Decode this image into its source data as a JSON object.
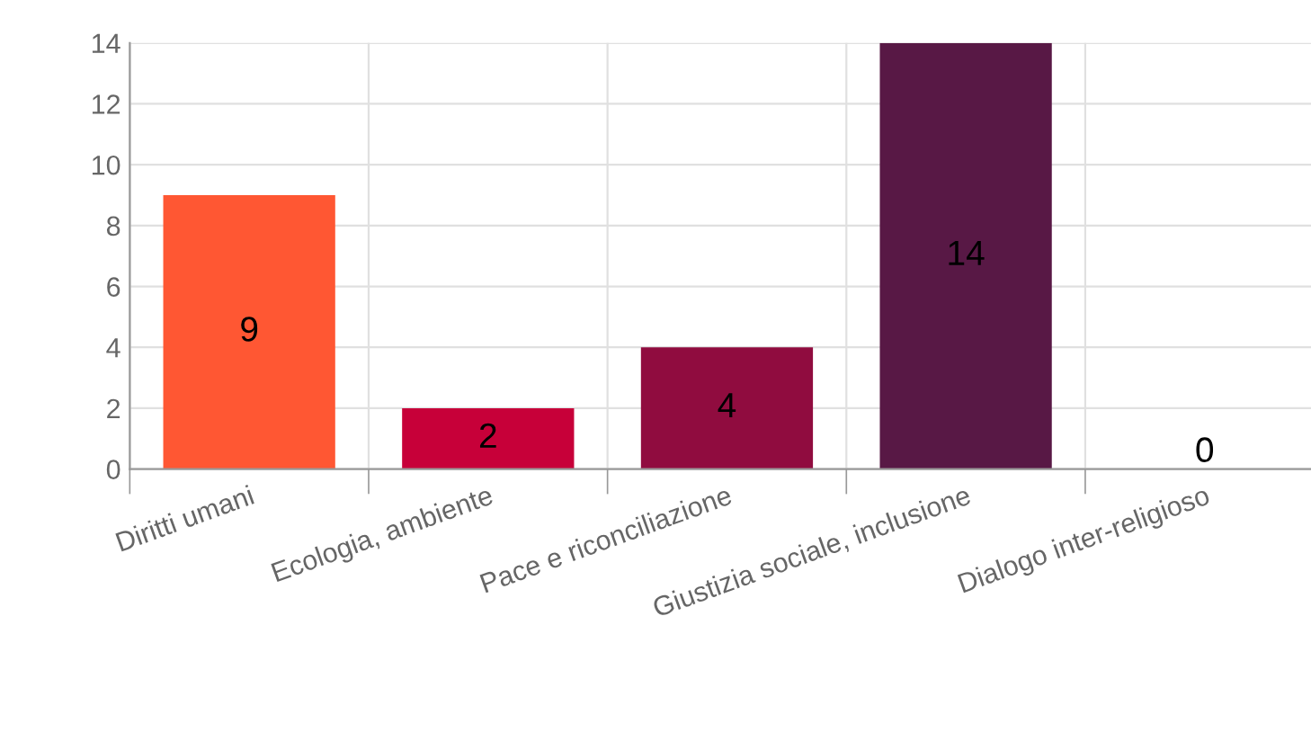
{
  "chart_data": {
    "type": "bar",
    "categories": [
      "Diritti umani",
      "Ecologia, ambiente",
      "Pace e riconciliazione",
      "Giustizia sociale, inclusione",
      "Dialogo inter-religioso"
    ],
    "values": [
      9,
      2,
      4,
      14,
      0
    ],
    "colors": [
      "#ff5733",
      "#c70039",
      "#900c3f",
      "#581845",
      "#581845"
    ],
    "ylim": [
      0,
      14
    ],
    "yticks": [
      0,
      2,
      4,
      6,
      8,
      10,
      12,
      14
    ],
    "grid": true,
    "data_labels": true
  }
}
